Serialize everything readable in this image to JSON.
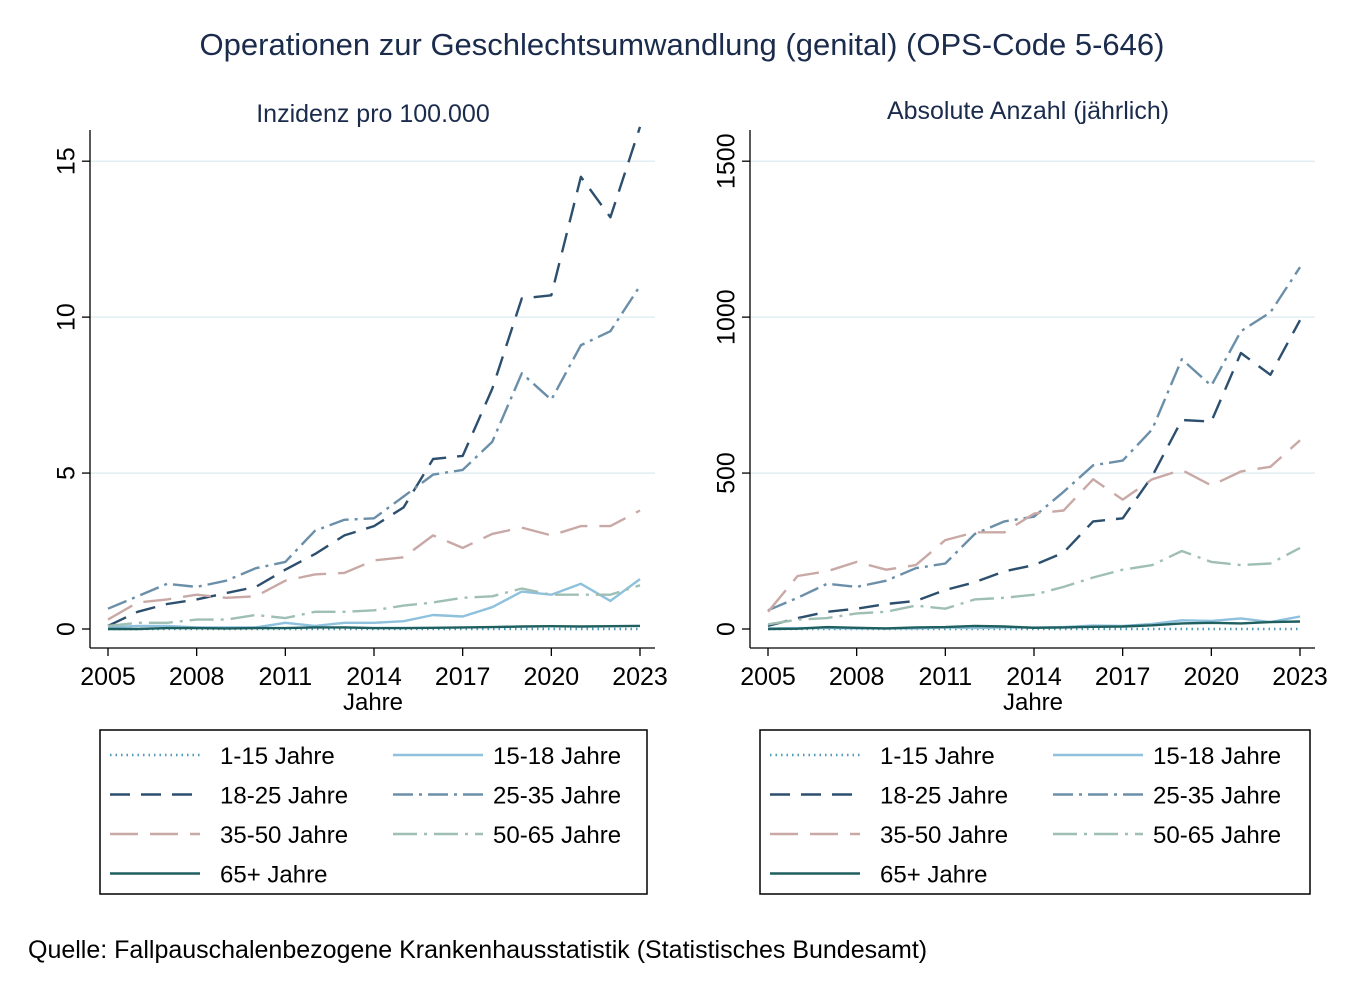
{
  "title": "Operationen zur Geschlechtsumwandlung (genital) (OPS-Code 5-646)",
  "source": "Quelle: Fallpauschalenbezogene Krankenhausstatistik (Statistisches Bundesamt)",
  "colors": {
    "title": "#1a2b4c",
    "axis": "#000000",
    "grid": "#e2eef3",
    "1-15": "#4a9bb5",
    "15-18": "#8ec1dd",
    "18-25": "#2c4f6e",
    "25-35": "#6b8fa8",
    "35-50": "#c9a9a6",
    "50-65": "#9fbfb4",
    "65+": "#1f5f5f"
  },
  "chart_data": [
    {
      "type": "line",
      "title": "Inzidenz pro 100.000",
      "xlabel": "Jahre",
      "ylabel": "",
      "xlim": [
        2005,
        2023
      ],
      "ylim": [
        0,
        16
      ],
      "xticks": [
        "2005",
        "2008",
        "2011",
        "2014",
        "2017",
        "2020",
        "2023"
      ],
      "yticks": [
        "0",
        "5",
        "10",
        "15"
      ],
      "grid": true,
      "legend_position": "bottom",
      "x": [
        2005,
        2006,
        2007,
        2008,
        2009,
        2010,
        2011,
        2012,
        2013,
        2014,
        2015,
        2016,
        2017,
        2018,
        2019,
        2020,
        2021,
        2022,
        2023
      ],
      "series": [
        {
          "name": "1-15 Jahre",
          "key": "1-15",
          "values": [
            0,
            0,
            0,
            0,
            0,
            0,
            0,
            0,
            0,
            0,
            0,
            0,
            0,
            0,
            0,
            0,
            0,
            0,
            0
          ]
        },
        {
          "name": "15-18 Jahre",
          "key": "15-18",
          "values": [
            0.05,
            0.1,
            0.1,
            0.05,
            0.05,
            0.05,
            0.2,
            0.1,
            0.2,
            0.2,
            0.25,
            0.45,
            0.4,
            0.7,
            1.2,
            1.1,
            1.45,
            0.9,
            1.6
          ]
        },
        {
          "name": "18-25 Jahre",
          "key": "18-25",
          "values": [
            0.1,
            0.55,
            0.8,
            0.95,
            1.15,
            1.35,
            1.9,
            2.4,
            3.0,
            3.3,
            3.9,
            5.45,
            5.55,
            7.7,
            10.6,
            10.7,
            14.5,
            13.2,
            16.1
          ]
        },
        {
          "name": "25-35 Jahre",
          "key": "25-35",
          "values": [
            0.65,
            1.05,
            1.45,
            1.35,
            1.55,
            1.95,
            2.15,
            3.15,
            3.5,
            3.55,
            4.25,
            4.95,
            5.1,
            6.0,
            8.2,
            7.35,
            9.1,
            9.55,
            11.0
          ]
        },
        {
          "name": "35-50 Jahre",
          "key": "35-50",
          "values": [
            0.3,
            0.85,
            0.95,
            1.1,
            1.0,
            1.05,
            1.55,
            1.75,
            1.8,
            2.2,
            2.3,
            3.0,
            2.6,
            3.05,
            3.25,
            3.0,
            3.3,
            3.3,
            3.8
          ]
        },
        {
          "name": "50-65 Jahre",
          "key": "50-65",
          "values": [
            0.1,
            0.2,
            0.2,
            0.3,
            0.3,
            0.45,
            0.35,
            0.55,
            0.55,
            0.6,
            0.75,
            0.85,
            1.0,
            1.05,
            1.3,
            1.1,
            1.1,
            1.1,
            1.4
          ]
        },
        {
          "name": "65+ Jahre",
          "key": "65+",
          "values": [
            0,
            0,
            0.03,
            0.03,
            0.02,
            0.03,
            0.03,
            0.05,
            0.05,
            0.03,
            0.03,
            0.04,
            0.05,
            0.06,
            0.08,
            0.09,
            0.08,
            0.09,
            0.1
          ]
        }
      ]
    },
    {
      "type": "line",
      "title": "Absolute Anzahl (jährlich)",
      "xlabel": "Jahre",
      "ylabel": "",
      "xlim": [
        2005,
        2023
      ],
      "ylim": [
        0,
        1600
      ],
      "xticks": [
        "2005",
        "2008",
        "2011",
        "2014",
        "2017",
        "2020",
        "2023"
      ],
      "yticks": [
        "0",
        "500",
        "1000",
        "1500"
      ],
      "grid": true,
      "legend_position": "bottom",
      "x": [
        2005,
        2006,
        2007,
        2008,
        2009,
        2010,
        2011,
        2012,
        2013,
        2014,
        2015,
        2016,
        2017,
        2018,
        2019,
        2020,
        2021,
        2022,
        2023
      ],
      "series": [
        {
          "name": "1-15 Jahre",
          "key": "1-15",
          "values": [
            0,
            0,
            0,
            0,
            0,
            0,
            0,
            0,
            0,
            0,
            0,
            0,
            0,
            0,
            0,
            0,
            0,
            0,
            0
          ]
        },
        {
          "name": "15-18 Jahre",
          "key": "15-18",
          "values": [
            2,
            3,
            3,
            2,
            2,
            2,
            5,
            3,
            5,
            5,
            6,
            11,
            10,
            16,
            28,
            26,
            34,
            22,
            40
          ]
        },
        {
          "name": "18-25 Jahre",
          "key": "18-25",
          "values": [
            10,
            35,
            55,
            65,
            80,
            90,
            125,
            150,
            185,
            205,
            245,
            345,
            355,
            490,
            670,
            665,
            885,
            815,
            990
          ]
        },
        {
          "name": "25-35 Jahre",
          "key": "25-35",
          "values": [
            60,
            100,
            145,
            135,
            155,
            195,
            210,
            305,
            345,
            360,
            440,
            525,
            540,
            640,
            865,
            780,
            955,
            1015,
            1160
          ]
        },
        {
          "name": "35-50 Jahre",
          "key": "35-50",
          "values": [
            55,
            170,
            185,
            215,
            190,
            205,
            285,
            310,
            310,
            370,
            380,
            480,
            415,
            480,
            510,
            460,
            505,
            520,
            605
          ]
        },
        {
          "name": "50-65 Jahre",
          "key": "50-65",
          "values": [
            15,
            30,
            35,
            50,
            55,
            75,
            65,
            95,
            100,
            110,
            135,
            165,
            190,
            205,
            250,
            215,
            205,
            210,
            260
          ]
        },
        {
          "name": "65+ Jahre",
          "key": "65+",
          "values": [
            0,
            1,
            6,
            4,
            2,
            5,
            6,
            10,
            8,
            4,
            5,
            7,
            8,
            12,
            18,
            20,
            18,
            22,
            24
          ]
        }
      ]
    }
  ]
}
